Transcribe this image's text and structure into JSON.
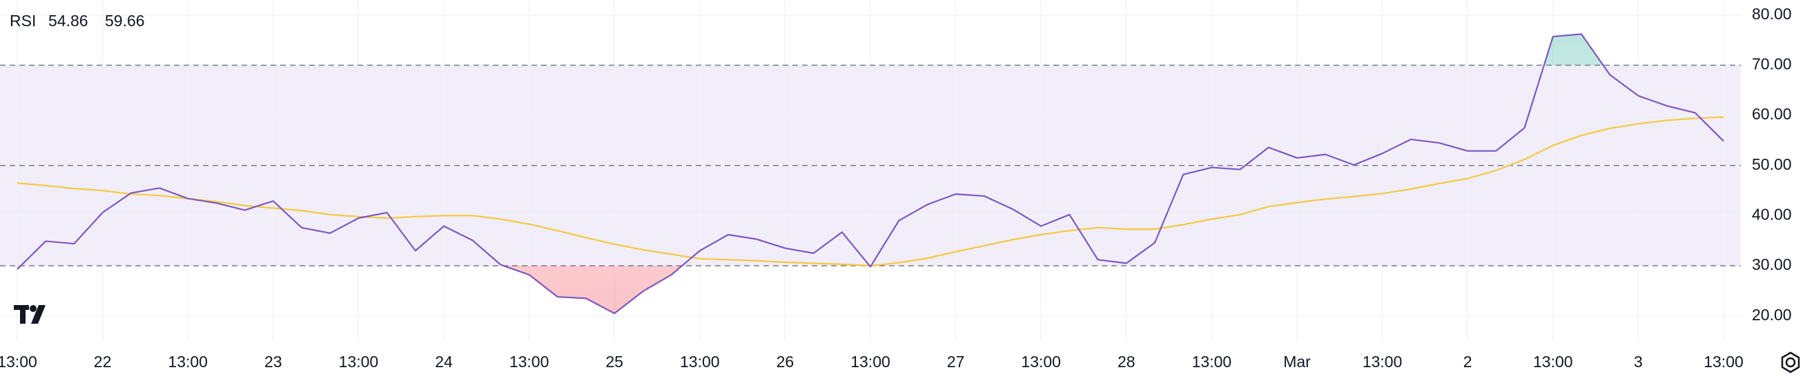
{
  "chart_data": {
    "type": "line",
    "indicator": "RSI",
    "readouts": [
      54.86,
      59.66
    ],
    "categories": [
      "13:00",
      null,
      null,
      "22",
      null,
      null,
      "13:00",
      null,
      null,
      "23",
      null,
      null,
      "13:00",
      null,
      null,
      "24",
      null,
      null,
      "13:00",
      null,
      null,
      "25",
      null,
      null,
      "13:00",
      null,
      null,
      "26",
      null,
      null,
      "13:00",
      null,
      null,
      "27",
      null,
      null,
      "13:00",
      null,
      null,
      "28",
      null,
      null,
      "13:00",
      null,
      null,
      "Mar",
      null,
      null,
      "13:00",
      null,
      null,
      "2",
      null,
      null,
      "13:00",
      null,
      null,
      "3",
      null,
      null,
      "13:00"
    ],
    "series": [
      {
        "color": "#7e57c2",
        "values": [
          29.3,
          34.9,
          34.4,
          40.6,
          44.5,
          45.5,
          43.4,
          42.5,
          41.1,
          42.9,
          37.6,
          36.5,
          39.5,
          40.6,
          33.0,
          37.9,
          35.1,
          30.2,
          28.2,
          23.8,
          23.5,
          20.5,
          24.9,
          28.2,
          33.0,
          36.2,
          35.3,
          33.5,
          32.5,
          36.7,
          29.8,
          39.0,
          42.2,
          44.3,
          43.9,
          41.3,
          37.9,
          40.2,
          31.2,
          30.5,
          34.6,
          48.2,
          49.6,
          49.2,
          53.6,
          51.5,
          52.2,
          50.1,
          52.4,
          55.2,
          54.5,
          52.9,
          52.9,
          57.5,
          75.7,
          76.2,
          68.1,
          63.9,
          61.9,
          60.5,
          54.86
        ]
      },
      {
        "color": "#f5c842",
        "values": [
          46.5,
          46.0,
          45.4,
          45.0,
          44.3,
          44.0,
          43.4,
          42.8,
          42.0,
          41.5,
          41.0,
          40.2,
          39.8,
          39.5,
          39.8,
          40.0,
          40.0,
          39.3,
          38.3,
          37.0,
          35.6,
          34.3,
          33.2,
          32.3,
          31.4,
          31.2,
          31.0,
          30.7,
          30.5,
          30.3,
          30.0,
          30.6,
          31.5,
          32.8,
          34.0,
          35.2,
          36.2,
          37.0,
          37.6,
          37.3,
          37.3,
          38.2,
          39.3,
          40.2,
          41.8,
          42.6,
          43.3,
          43.8,
          44.4,
          45.3,
          46.4,
          47.4,
          49.0,
          51.2,
          54.0,
          56.0,
          57.4,
          58.3,
          59.0,
          59.4,
          59.66
        ]
      }
    ],
    "ylim": [
      15,
      83
    ],
    "yticks": [
      {
        "value": 20,
        "label": "20.00"
      },
      {
        "value": 30,
        "label": "30.00"
      },
      {
        "value": 40,
        "label": "40.00"
      },
      {
        "value": 50,
        "label": "50.00"
      },
      {
        "value": 60,
        "label": "60.00"
      },
      {
        "value": 70,
        "label": "70.00"
      },
      {
        "value": 80,
        "label": "80.00"
      }
    ],
    "levels": [
      70,
      50,
      30
    ],
    "band_color": "#7e57c2",
    "grid": true
  }
}
